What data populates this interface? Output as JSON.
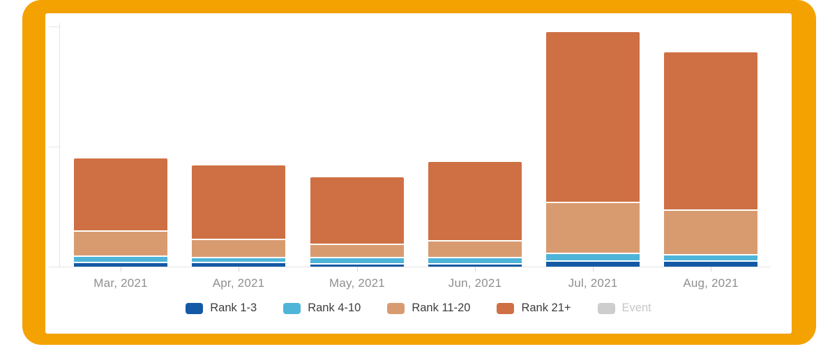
{
  "frame": {
    "accent_color": "#F3A202",
    "card_background": "#ffffff"
  },
  "chart_data": {
    "type": "bar",
    "stacked": true,
    "title": "",
    "xlabel": "",
    "ylabel": "",
    "categories": [
      "Mar, 2021",
      "Apr, 2021",
      "May, 2021",
      "Jun, 2021",
      "Jul, 2021",
      "Aug, 2021"
    ],
    "series": [
      {
        "name": "Rank 1-3",
        "color": "#1459A5",
        "active": true,
        "values": [
          3,
          3,
          2,
          2,
          4,
          4
        ]
      },
      {
        "name": "Rank 4-10",
        "color": "#4FB5D8",
        "active": true,
        "values": [
          4,
          3,
          4,
          4,
          5,
          4
        ]
      },
      {
        "name": "Rank 11-20",
        "color": "#D89B70",
        "active": true,
        "values": [
          20,
          14,
          10,
          13,
          41,
          36
        ]
      },
      {
        "name": "Rank 21+",
        "color": "#CE7044",
        "active": true,
        "values": [
          60,
          61,
          55,
          65,
          141,
          131
        ]
      },
      {
        "name": "Event",
        "color": "#CDCDCD",
        "active": false,
        "values": [
          0,
          0,
          0,
          0,
          0,
          0
        ]
      }
    ],
    "totals": [
      87,
      81,
      71,
      84,
      191,
      175
    ],
    "ylim": [
      0,
      203
    ],
    "yticks_estimated": [
      0,
      100,
      200
    ],
    "y_axis_labels_visible": false,
    "grid": false,
    "legend_position": "bottom"
  }
}
